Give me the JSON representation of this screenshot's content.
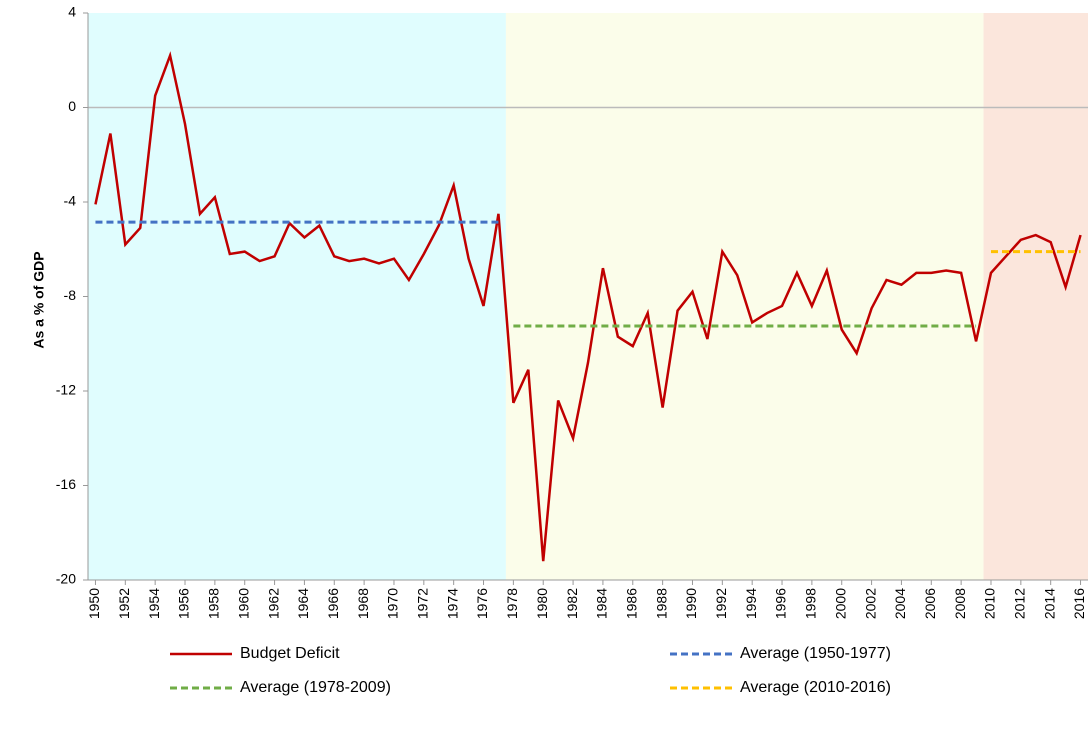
{
  "chart_data": {
    "type": "line",
    "ylabel": "As a % of GDP",
    "x": [
      1950,
      1951,
      1952,
      1953,
      1954,
      1955,
      1956,
      1957,
      1958,
      1959,
      1960,
      1961,
      1962,
      1963,
      1964,
      1965,
      1966,
      1967,
      1968,
      1969,
      1970,
      1971,
      1972,
      1973,
      1974,
      1975,
      1976,
      1977,
      1978,
      1979,
      1980,
      1981,
      1982,
      1983,
      1984,
      1985,
      1986,
      1987,
      1988,
      1989,
      1990,
      1991,
      1992,
      1993,
      1994,
      1995,
      1996,
      1997,
      1998,
      1999,
      2000,
      2001,
      2002,
      2003,
      2004,
      2005,
      2006,
      2007,
      2008,
      2009,
      2010,
      2011,
      2012,
      2013,
      2014,
      2015,
      2016
    ],
    "series": [
      {
        "name": "Budget Deficit",
        "color": "#c00000",
        "dashed": false,
        "values": [
          -4.1,
          -1.1,
          -5.8,
          -5.1,
          0.5,
          2.2,
          -0.7,
          -4.5,
          -3.8,
          -6.2,
          -6.1,
          -6.5,
          -6.3,
          -4.9,
          -5.5,
          -5.0,
          -6.3,
          -6.5,
          -6.4,
          -6.6,
          -6.4,
          -7.3,
          -6.2,
          -5.0,
          -3.3,
          -6.4,
          -8.4,
          -4.5,
          -12.5,
          -11.1,
          -19.2,
          -12.4,
          -14.0,
          -10.8,
          -6.8,
          -9.7,
          -10.1,
          -8.7,
          -12.7,
          -8.6,
          -7.8,
          -9.8,
          -6.1,
          -7.1,
          -9.1,
          -8.7,
          -8.4,
          -7.0,
          -8.4,
          -6.9,
          -9.4,
          -10.4,
          -8.5,
          -7.3,
          -7.5,
          -7.0,
          -7.0,
          -6.9,
          -7.0,
          -9.9,
          -7.0,
          -6.3,
          -5.6,
          -5.4,
          -5.7,
          -7.6,
          -5.4
        ]
      },
      {
        "name": "Average (1950-1977)",
        "color": "#4472c4",
        "dashed": true,
        "x": [
          1950,
          1977
        ],
        "values": [
          -4.85,
          -4.85
        ]
      },
      {
        "name": "Average (1978-2009)",
        "color": "#70ad47",
        "dashed": true,
        "x": [
          1978,
          2009
        ],
        "values": [
          -9.25,
          -9.25
        ]
      },
      {
        "name": "Average (2010-2016)",
        "color": "#ffc000",
        "dashed": true,
        "x": [
          2010,
          2016
        ],
        "values": [
          -6.1,
          -6.1
        ]
      }
    ],
    "bands": [
      {
        "start": 1949.5,
        "end": 1977.5,
        "color": "#e0fdfe"
      },
      {
        "start": 1977.5,
        "end": 2009.5,
        "color": "#fbfdea"
      },
      {
        "start": 2009.5,
        "end": 2016.5,
        "color": "#fbe6dc"
      }
    ],
    "xlim": [
      1949.5,
      2016.5
    ],
    "xticks": [
      1950,
      1952,
      1954,
      1956,
      1958,
      1960,
      1962,
      1964,
      1966,
      1968,
      1970,
      1972,
      1974,
      1976,
      1978,
      1980,
      1982,
      1984,
      1986,
      1988,
      1990,
      1992,
      1994,
      1996,
      1998,
      2000,
      2002,
      2004,
      2006,
      2008,
      2010,
      2012,
      2014,
      2016
    ],
    "ylim": [
      -20,
      4
    ],
    "yticks": [
      -20,
      -16,
      -12,
      -8,
      -4,
      0,
      4
    ],
    "legend": "bottom"
  }
}
